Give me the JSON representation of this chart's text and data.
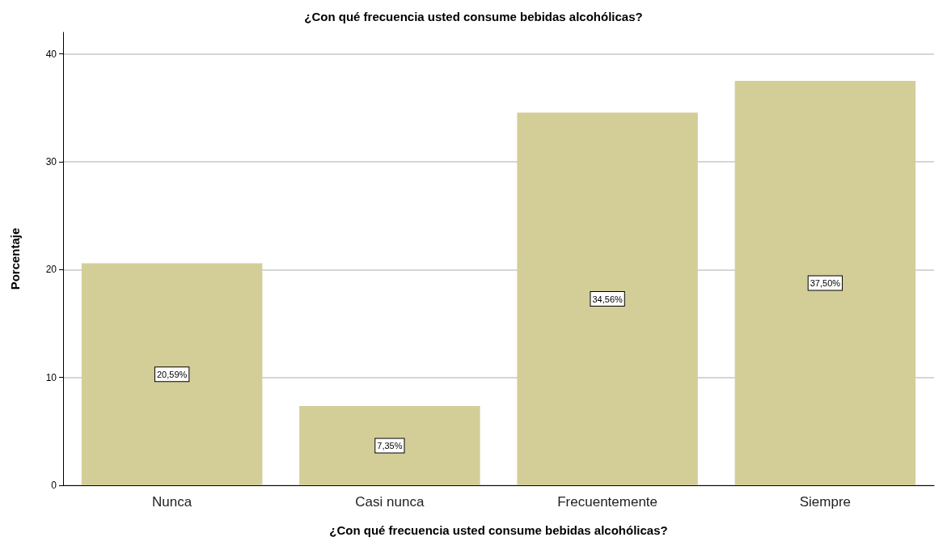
{
  "chart_data": {
    "type": "bar",
    "title": "¿Con qué frecuencia usted consume bebidas alcohólicas?",
    "xlabel": "¿Con qué frecuencia usted consume bebidas alcohólicas?",
    "ylabel": "Porcentaje",
    "categories": [
      "Nunca",
      "Casi nunca",
      "Frecuentemente",
      "Siempre"
    ],
    "values": [
      20.59,
      7.35,
      34.56,
      37.5
    ],
    "value_labels": [
      "20,59%",
      "7,35%",
      "34,56%",
      "37,50%"
    ],
    "color": "#d3ce97",
    "ylim": [
      0,
      42
    ],
    "yticks": [
      0,
      10,
      20,
      30,
      40
    ],
    "grid": "y"
  }
}
